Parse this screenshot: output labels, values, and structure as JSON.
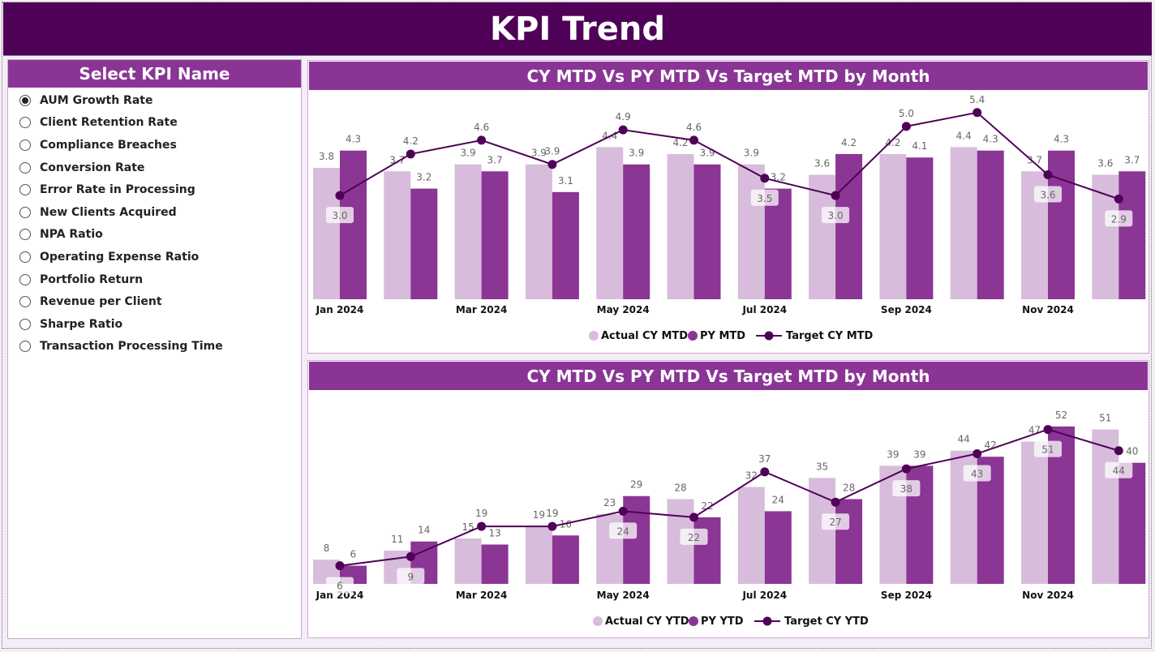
{
  "header": {
    "title": "KPI Trend"
  },
  "slicer": {
    "title": "Select KPI Name",
    "selected": "AUM Growth Rate",
    "items": [
      "AUM Growth Rate",
      "Client Retention Rate",
      "Compliance Breaches",
      "Conversion Rate",
      "Error Rate in Processing",
      "New Clients Acquired",
      "NPA Ratio",
      "Operating Expense Ratio",
      "Portfolio Return",
      "Revenue per Client",
      "Sharpe Ratio",
      "Transaction Processing Time"
    ]
  },
  "colors": {
    "header": "#4f0057",
    "panel_header": "#8a3596",
    "actual": "#d8bcdc",
    "py": "#8b3595",
    "target": "#4f0057"
  },
  "chart_data": [
    {
      "type": "bar+line",
      "title": "CY MTD Vs PY MTD Vs Target MTD by Month",
      "categories": [
        "Jan 2024",
        "Feb 2024",
        "Mar 2024",
        "Apr 2024",
        "May 2024",
        "Jun 2024",
        "Jul 2024",
        "Aug 2024",
        "Sep 2024",
        "Oct 2024",
        "Nov 2024",
        "Dec 2024"
      ],
      "x_tick_labels": [
        "Jan 2024",
        "",
        "Mar 2024",
        "",
        "May 2024",
        "",
        "Jul 2024",
        "",
        "Sep 2024",
        "",
        "Nov 2024",
        ""
      ],
      "ylim": [
        0,
        5.7
      ],
      "legend": "bottom",
      "grid": false,
      "series": [
        {
          "name": "Actual CY MTD",
          "kind": "bar",
          "values": [
            3.8,
            3.7,
            3.9,
            3.9,
            4.4,
            4.2,
            3.9,
            3.6,
            4.2,
            4.4,
            3.7,
            3.6
          ]
        },
        {
          "name": "PY MTD",
          "kind": "bar",
          "values": [
            4.3,
            3.2,
            3.7,
            3.1,
            3.9,
            3.9,
            3.2,
            4.2,
            4.1,
            4.3,
            4.3,
            3.7
          ]
        },
        {
          "name": "Target CY MTD",
          "kind": "line",
          "values": [
            3.0,
            4.2,
            4.6,
            3.9,
            4.9,
            4.6,
            3.5,
            3.0,
            5.0,
            5.4,
            3.6,
            2.9
          ]
        }
      ]
    },
    {
      "type": "bar+line",
      "title": "CY MTD Vs PY MTD Vs Target MTD by Month",
      "categories": [
        "Jan 2024",
        "Feb 2024",
        "Mar 2024",
        "Apr 2024",
        "May 2024",
        "Jun 2024",
        "Jul 2024",
        "Aug 2024",
        "Sep 2024",
        "Oct 2024",
        "Nov 2024",
        "Dec 2024"
      ],
      "x_tick_labels": [
        "Jan 2024",
        "",
        "Mar 2024",
        "",
        "May 2024",
        "",
        "Jul 2024",
        "",
        "Sep 2024",
        "",
        "Nov 2024",
        ""
      ],
      "ylim": [
        0,
        60
      ],
      "legend": "bottom",
      "grid": false,
      "series": [
        {
          "name": "Actual CY YTD",
          "kind": "bar",
          "values": [
            8,
            11,
            15,
            19,
            23,
            28,
            32,
            35,
            39,
            44,
            47,
            51
          ]
        },
        {
          "name": "PY YTD",
          "kind": "bar",
          "values": [
            6,
            14,
            13,
            16,
            29,
            22,
            24,
            28,
            39,
            42,
            52,
            40
          ]
        },
        {
          "name": "Target CY YTD",
          "kind": "line",
          "values": [
            6,
            9,
            19,
            19,
            24,
            22,
            37,
            27,
            38,
            43,
            51,
            44
          ]
        }
      ]
    }
  ]
}
